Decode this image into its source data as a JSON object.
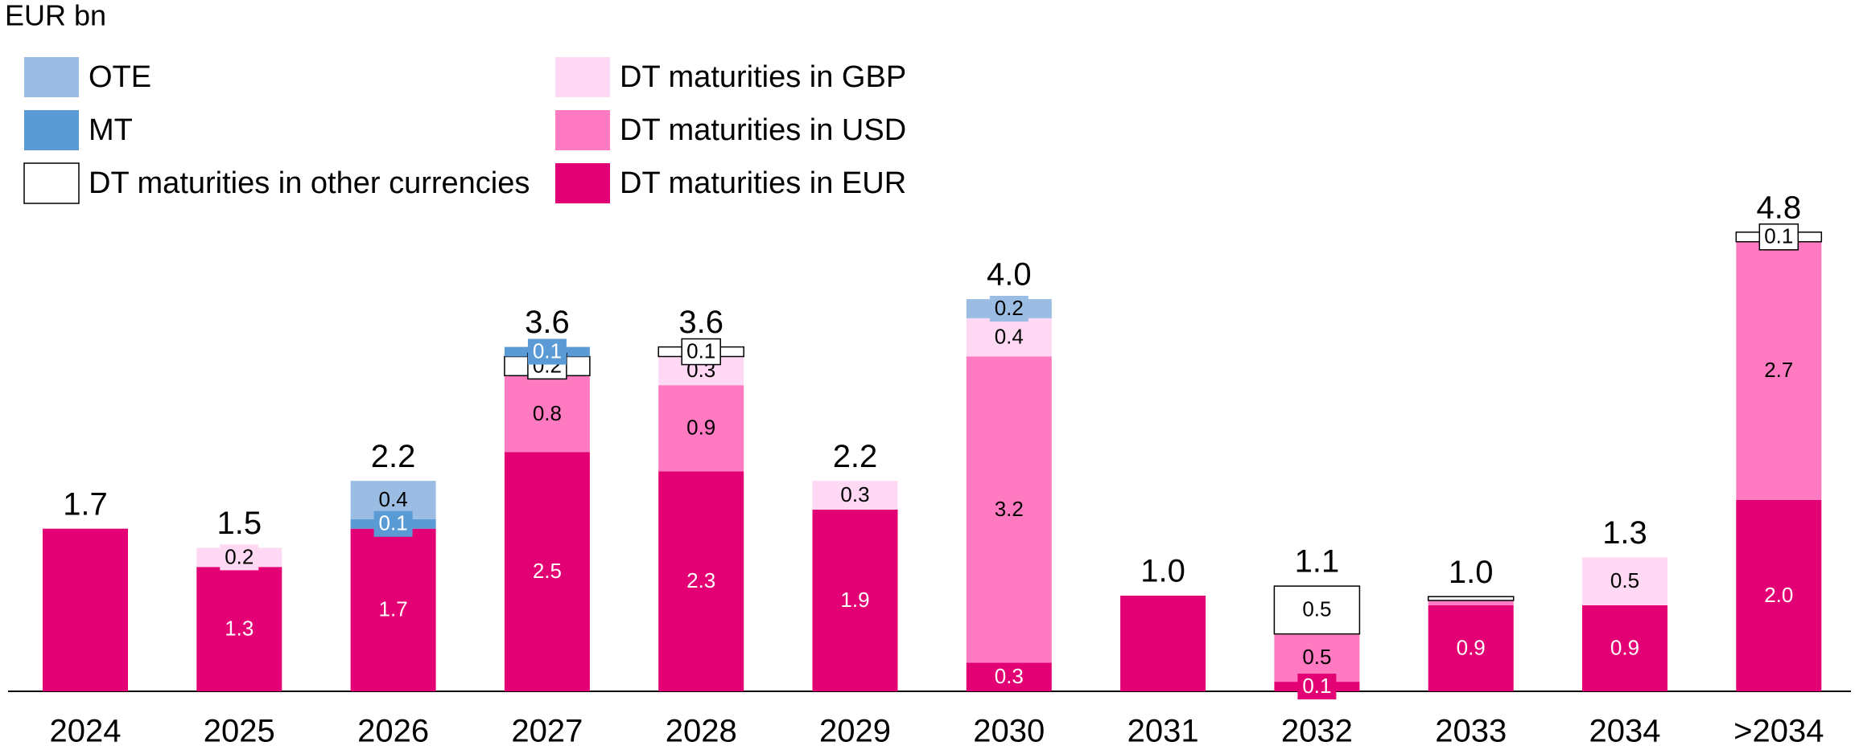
{
  "chart_data": {
    "type": "stacked_bar",
    "unit_label": "EUR bn",
    "categories": [
      "2024",
      "2025",
      "2026",
      "2027",
      "2028",
      "2029",
      "2030",
      "2031",
      "2032",
      "2033",
      "2034",
      ">2034"
    ],
    "series": [
      {
        "name": "DT maturities in EUR",
        "color": "#e20074",
        "label_color": "#ffffff",
        "values": [
          1.7,
          1.3,
          1.7,
          2.5,
          2.3,
          1.9,
          0.3,
          1.0,
          0.1,
          0.9,
          0.9,
          2.0
        ],
        "value_labels": [
          null,
          "1.3",
          "1.7",
          "2.5",
          "2.3",
          "1.9",
          "0.3",
          null,
          "0.1",
          "0.9",
          "0.9",
          "2.0"
        ]
      },
      {
        "name": "DT maturities in USD",
        "color": "#ff7ac1",
        "label_color": "#000000",
        "values": [
          null,
          null,
          null,
          0.8,
          0.9,
          null,
          3.2,
          null,
          0.5,
          0.05,
          null,
          2.7
        ],
        "value_labels": [
          null,
          null,
          null,
          "0.8",
          "0.9",
          null,
          "3.2",
          null,
          "0.5",
          null,
          null,
          "2.7"
        ]
      },
      {
        "name": "DT maturities in GBP",
        "color": "#ffd9f3",
        "label_color": "#000000",
        "values": [
          null,
          0.2,
          null,
          null,
          0.3,
          0.3,
          0.4,
          null,
          null,
          null,
          0.5,
          null
        ],
        "value_labels": [
          null,
          "0.2",
          null,
          null,
          "0.3",
          "0.3",
          "0.4",
          null,
          null,
          null,
          "0.5",
          null
        ]
      },
      {
        "name": "DT maturities in other currencies",
        "color": "#ffffff",
        "label_color": "#000000",
        "values": [
          null,
          null,
          null,
          0.2,
          0.1,
          null,
          null,
          null,
          0.5,
          0.04,
          null,
          0.1
        ],
        "value_labels": [
          null,
          null,
          null,
          "0.2",
          "0.1",
          null,
          null,
          null,
          "0.5",
          null,
          null,
          "0.1"
        ]
      },
      {
        "name": "MT",
        "color": "#5b9bd5",
        "label_color": "#ffffff",
        "values": [
          null,
          null,
          0.1,
          0.1,
          null,
          null,
          null,
          null,
          null,
          null,
          null,
          null
        ],
        "value_labels": [
          null,
          null,
          "0.1",
          "0.1",
          null,
          null,
          null,
          null,
          null,
          null,
          null,
          null
        ]
      },
      {
        "name": "OTE",
        "color": "#9bbde3",
        "label_color": "#000000",
        "values": [
          null,
          null,
          0.4,
          null,
          null,
          null,
          0.2,
          null,
          null,
          null,
          null,
          null
        ],
        "value_labels": [
          null,
          null,
          "0.4",
          null,
          null,
          null,
          "0.2",
          null,
          null,
          null,
          null,
          null
        ]
      }
    ],
    "totals": [
      1.7,
      1.5,
      2.2,
      3.6,
      3.6,
      2.2,
      4.0,
      1.0,
      1.1,
      1.0,
      1.3,
      4.8
    ],
    "total_labels": [
      "1.7",
      "1.5",
      "2.2",
      "3.6",
      "3.6",
      "2.2",
      "4.0",
      "1.0",
      "1.1",
      "1.0",
      "1.3",
      "4.8"
    ]
  }
}
